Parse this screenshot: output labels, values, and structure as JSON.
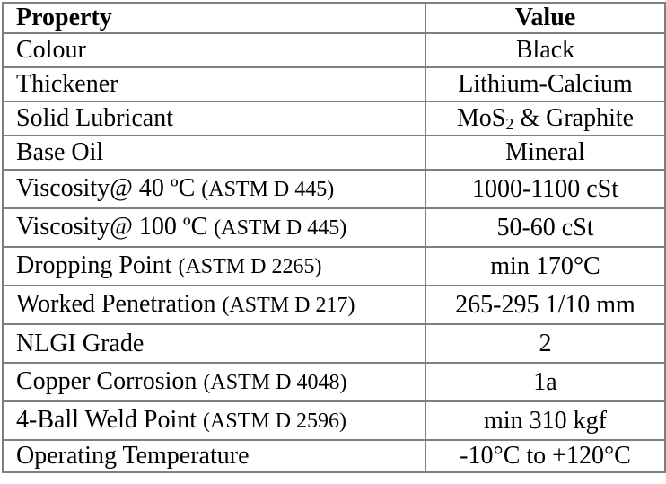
{
  "table": {
    "headers": {
      "property": "Property",
      "value": "Value"
    },
    "rows": [
      {
        "label": "Colour",
        "std": "",
        "value": "Black"
      },
      {
        "label": "Thickener",
        "std": "",
        "value": "Lithium-Calcium"
      },
      {
        "label": "Solid Lubricant",
        "std": "",
        "value_pre": "MoS",
        "value_sub": "2",
        "value_post": " & Graphite"
      },
      {
        "label": "Base Oil",
        "std": "",
        "value": "Mineral"
      },
      {
        "label": "Viscosity@ 40 ºC ",
        "std": "(ASTM D 445)",
        "value": "1000-1100 cSt"
      },
      {
        "label": "Viscosity@ 100 ºC ",
        "std": "(ASTM D 445)",
        "value": "50-60 cSt"
      },
      {
        "label": "Dropping Point ",
        "std": "(ASTM D 2265)",
        "value": "min 170°C"
      },
      {
        "label": "Worked Penetration ",
        "std": "(ASTM D 217)",
        "value": "265-295 1/10 mm"
      },
      {
        "label": "NLGI Grade",
        "std": "",
        "value": "2"
      },
      {
        "label": "Copper Corrosion ",
        "std": "(ASTM D 4048)",
        "value": "1a"
      },
      {
        "label": "4-Ball Weld Point ",
        "std": "(ASTM D 2596)",
        "value": "min 310 kgf"
      },
      {
        "label": "Operating Temperature",
        "std": "",
        "value": "-10°C to +120°C"
      }
    ]
  }
}
